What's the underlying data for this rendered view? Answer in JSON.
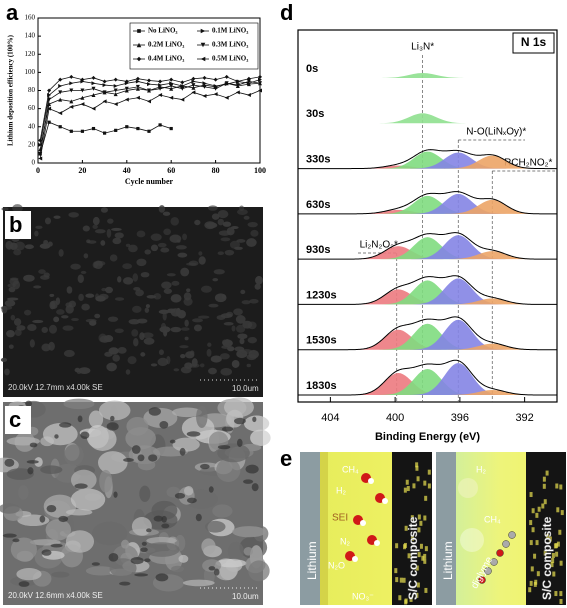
{
  "chart_data": [
    {
      "type": "line",
      "ylabel": "Lithium deposition efficiency (100%)",
      "xlabel": "Cycle number",
      "xlim": [
        0,
        100
      ],
      "xticks": [
        0,
        20,
        40,
        60,
        80,
        100
      ],
      "ylim": [
        0,
        160
      ],
      "yticks": [
        0,
        20,
        40,
        60,
        80,
        100,
        120,
        140,
        160
      ],
      "x": [
        1,
        5,
        10,
        15,
        20,
        25,
        30,
        35,
        40,
        45,
        50,
        55,
        60,
        65,
        70,
        75,
        80,
        85,
        90,
        95,
        100
      ],
      "series": [
        {
          "name": "No LiNO₃",
          "color": "#111111",
          "marker": "square",
          "values": [
            10,
            45,
            40,
            35,
            35,
            38,
            33,
            36,
            40,
            38,
            35,
            42,
            38,
            null,
            null,
            null,
            null,
            null,
            null,
            null,
            null
          ]
        },
        {
          "name": "0.1M LiNO₃",
          "color": "#111111",
          "marker": "right",
          "values": [
            20,
            75,
            85,
            88,
            90,
            88,
            86,
            85,
            88,
            90,
            87,
            86,
            88,
            85,
            90,
            88,
            85,
            87,
            90,
            88,
            92
          ]
        },
        {
          "name": "0.2M LiNO₃",
          "color": "#111111",
          "marker": "up",
          "values": [
            15,
            65,
            70,
            68,
            72,
            75,
            78,
            76,
            80,
            82,
            80,
            84,
            82,
            85,
            83,
            86,
            84,
            88,
            85,
            87,
            88
          ]
        },
        {
          "name": "0.3M LiNO₃",
          "color": "#111111",
          "marker": "down",
          "values": [
            10,
            70,
            78,
            80,
            80,
            82,
            78,
            80,
            82,
            84,
            80,
            82,
            85,
            82,
            86,
            84,
            82,
            88,
            86,
            90,
            88
          ]
        },
        {
          "name": "0.4M LiNO₃",
          "color": "#111111",
          "marker": "diamond",
          "values": [
            25,
            80,
            92,
            95,
            92,
            94,
            90,
            92,
            90,
            93,
            91,
            90,
            92,
            89,
            93,
            94,
            92,
            95,
            90,
            93,
            95
          ]
        },
        {
          "name": "0.5M LiNO₃",
          "color": "#111111",
          "marker": "left",
          "values": [
            5,
            60,
            55,
            62,
            65,
            60,
            68,
            65,
            70,
            72,
            68,
            75,
            72,
            70,
            78,
            74,
            76,
            72,
            78,
            75,
            80
          ]
        }
      ]
    },
    {
      "type": "spectra",
      "title": "N 1s",
      "xlabel": "Binding Energy (eV)",
      "xlim": [
        406,
        390
      ],
      "xticks": [
        404,
        400,
        396,
        392
      ],
      "peak_width": 0.85,
      "annotations": [
        {
          "text": "Li₃N*",
          "x": 398.3
        },
        {
          "text": "N-O(LiNₓOy)*",
          "x": 396.1
        },
        {
          "text": "RCH₂NO₂*",
          "x": 394.0
        },
        {
          "text": "Li₂N₂O₂*",
          "x": 399.9
        }
      ],
      "series": [
        {
          "name": "0s",
          "peaks": [
            {
              "center": 398.3,
              "height": 5,
              "color": "#8fe08f"
            }
          ]
        },
        {
          "name": "30s",
          "peaks": [
            {
              "center": 398.3,
              "height": 10,
              "color": "#8fe08f"
            }
          ]
        },
        {
          "name": "330s",
          "peaks": [
            {
              "center": 399.8,
              "height": 3,
              "color": "#ec7a80"
            },
            {
              "center": 398.0,
              "height": 17,
              "color": "#7fdc7f"
            },
            {
              "center": 396.1,
              "height": 16,
              "color": "#8484e4"
            },
            {
              "center": 394.0,
              "height": 13,
              "color": "#eca466"
            }
          ]
        },
        {
          "name": "630s",
          "peaks": [
            {
              "center": 399.8,
              "height": 4,
              "color": "#ec7a80"
            },
            {
              "center": 398.0,
              "height": 18,
              "color": "#7fdc7f"
            },
            {
              "center": 396.1,
              "height": 20,
              "color": "#8484e4"
            },
            {
              "center": 394.0,
              "height": 14,
              "color": "#eca466"
            }
          ]
        },
        {
          "name": "930s",
          "peaks": [
            {
              "center": 399.8,
              "height": 13,
              "color": "#ec7a80"
            },
            {
              "center": 398.0,
              "height": 22,
              "color": "#7fdc7f"
            },
            {
              "center": 396.1,
              "height": 24,
              "color": "#8484e4"
            },
            {
              "center": 394.0,
              "height": 8,
              "color": "#eca466"
            }
          ]
        },
        {
          "name": "1230s",
          "peaks": [
            {
              "center": 399.8,
              "height": 15,
              "color": "#ec7a80"
            },
            {
              "center": 398.0,
              "height": 24,
              "color": "#7fdc7f"
            },
            {
              "center": 396.1,
              "height": 26,
              "color": "#8484e4"
            },
            {
              "center": 394.0,
              "height": 6,
              "color": "#eca466"
            }
          ]
        },
        {
          "name": "1530s",
          "peaks": [
            {
              "center": 399.8,
              "height": 20,
              "color": "#ec7a80"
            },
            {
              "center": 398.0,
              "height": 26,
              "color": "#7fdc7f"
            },
            {
              "center": 396.1,
              "height": 30,
              "color": "#8484e4"
            },
            {
              "center": 394.0,
              "height": 6,
              "color": "#eca466"
            }
          ]
        },
        {
          "name": "1830s",
          "peaks": [
            {
              "center": 399.8,
              "height": 22,
              "color": "#ec7a80"
            },
            {
              "center": 398.0,
              "height": 26,
              "color": "#7fdc7f"
            },
            {
              "center": 396.1,
              "height": 32,
              "color": "#8484e4"
            },
            {
              "center": 394.0,
              "height": 5,
              "color": "#eca466"
            }
          ]
        }
      ]
    }
  ],
  "panel_labels": [
    "a",
    "b",
    "c",
    "d",
    "e"
  ],
  "sem_images": [
    {
      "info": "20.0kV 12.7mm x4.00k SE",
      "scale": "10.0um"
    },
    {
      "info": "20.0kV 12.6mm x4.00k SE",
      "scale": "10.0um"
    }
  ],
  "schematic": {
    "left": {
      "anode": "Lithium",
      "cathode": "S/C composite",
      "labels": [
        "CH₄",
        "H₂",
        "SEI",
        "N₂",
        "N₂O",
        "NO₃⁻"
      ]
    },
    "right": {
      "anode": "Lithium",
      "cathode": "S/C composite",
      "labels": [
        "H₂",
        "CH₄",
        "diglyme"
      ]
    }
  }
}
